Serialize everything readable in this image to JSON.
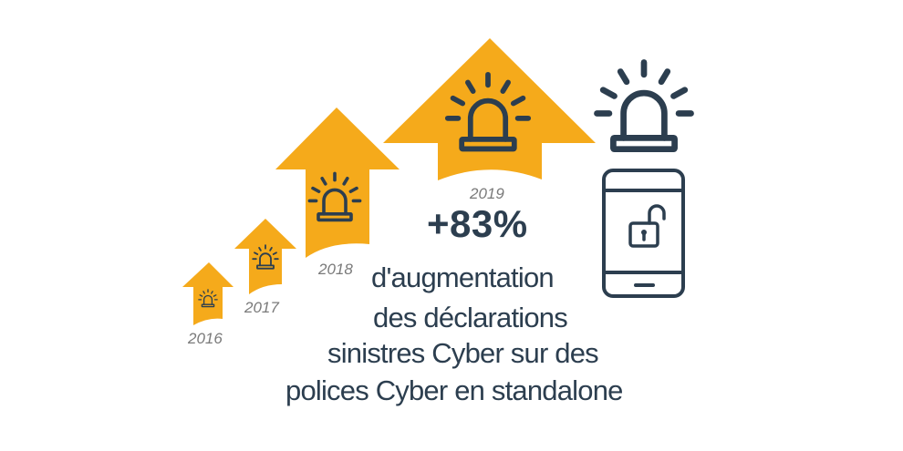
{
  "colors": {
    "accent": "#f5aa1b",
    "text_dark": "#2c3e4f",
    "year_grey": "#7a7a7a",
    "background": "#ffffff"
  },
  "years": [
    {
      "label": "2016"
    },
    {
      "label": "2017"
    },
    {
      "label": "2018"
    },
    {
      "label": "2019"
    }
  ],
  "headline": {
    "value": "+83%",
    "lines": [
      "d'augmentation",
      "des déclarations",
      "sinistres Cyber sur des",
      "polices Cyber en standalone"
    ]
  },
  "icons": {
    "arrow": "up-arrow-icon",
    "alarm": "alarm-beacon-icon",
    "phone": "smartphone-icon",
    "lock": "open-padlock-icon"
  }
}
